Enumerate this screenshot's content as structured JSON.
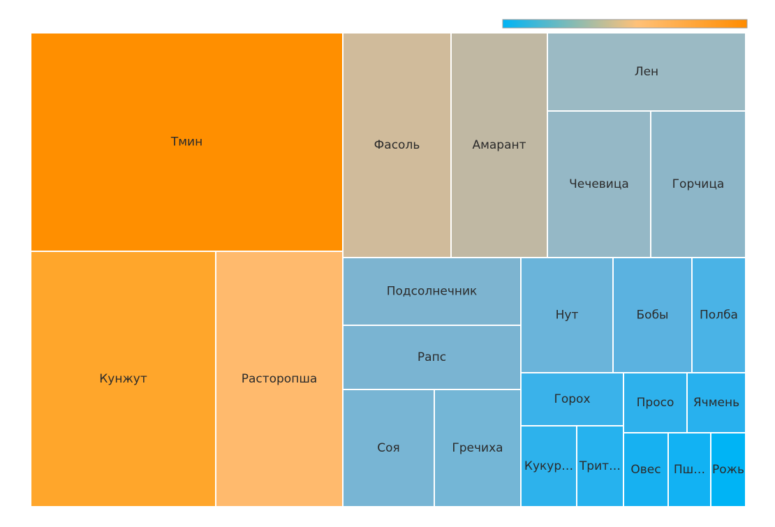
{
  "chart_data": {
    "type": "treemap",
    "title": "",
    "colorscale": {
      "low": "#00b4f5",
      "mid": "#ffc178",
      "high": "#ff8c00"
    },
    "items": [
      {
        "name": "Тмин",
        "label": "Тмин",
        "color": "#ff8f00"
      },
      {
        "name": "Кунжут",
        "label": "Кунжут",
        "color": "#ffa62b"
      },
      {
        "name": "Расторопша",
        "label": "Расторопша",
        "color": "#ffba6d"
      },
      {
        "name": "Фасоль",
        "label": "Фасоль",
        "color": "#d0bb9b"
      },
      {
        "name": "Амарант",
        "label": "Амарант",
        "color": "#c0b8a3"
      },
      {
        "name": "Лен",
        "label": "Лен",
        "color": "#9bbac4"
      },
      {
        "name": "Чечевица",
        "label": "Чечевица",
        "color": "#95b8c6"
      },
      {
        "name": "Горчица",
        "label": "Горчица",
        "color": "#8db6c8"
      },
      {
        "name": "Подсолнечник",
        "label": "Подсолнечник",
        "color": "#7db4d0"
      },
      {
        "name": "Рапс",
        "label": "Рапс",
        "color": "#7ab4d2"
      },
      {
        "name": "Соя",
        "label": "Соя",
        "color": "#78b5d4"
      },
      {
        "name": "Гречиха",
        "label": "Гречиха",
        "color": "#74b6d6"
      },
      {
        "name": "Нут",
        "label": "Нут",
        "color": "#6ab4da"
      },
      {
        "name": "Бобы",
        "label": "Бобы",
        "color": "#5bb2e0"
      },
      {
        "name": "Полба",
        "label": "Полба",
        "color": "#4ab3e6"
      },
      {
        "name": "Горох",
        "label": "Горох",
        "color": "#3ab2ea"
      },
      {
        "name": "Просо",
        "label": "Просо",
        "color": "#2eb1ec"
      },
      {
        "name": "Ячмень",
        "label": "Ячмень",
        "color": "#28b1ee"
      },
      {
        "name": "Кукуруза",
        "label": "Кукур…",
        "color": "#2db2ec"
      },
      {
        "name": "Тритикале",
        "label": "Трит…",
        "color": "#26b2ee"
      },
      {
        "name": "Овес",
        "label": "Овес",
        "color": "#17b1f1"
      },
      {
        "name": "Пшеница",
        "label": "Пш…",
        "color": "#12b2f3"
      },
      {
        "name": "Рожь",
        "label": "Рожь",
        "color": "#00b4f5"
      }
    ]
  }
}
